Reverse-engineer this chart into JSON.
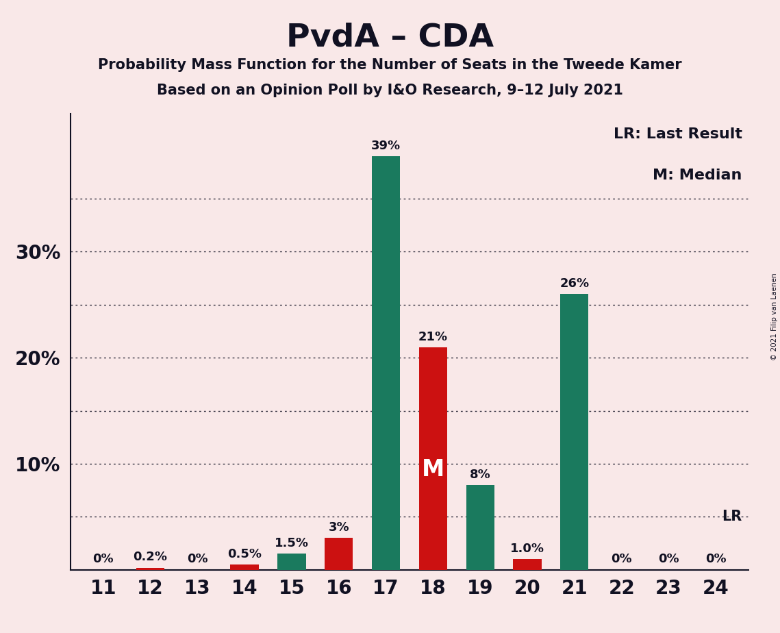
{
  "title": "PvdA – CDA",
  "subtitle1": "Probability Mass Function for the Number of Seats in the Tweede Kamer",
  "subtitle2": "Based on an Opinion Poll by I&O Research, 9–12 July 2021",
  "copyright": "© 2021 Filip van Laenen",
  "categories": [
    11,
    12,
    13,
    14,
    15,
    16,
    17,
    18,
    19,
    20,
    21,
    22,
    23,
    24
  ],
  "green_values": [
    0.0,
    0.0,
    0.0,
    0.5,
    1.5,
    0.0,
    39.0,
    0.0,
    8.0,
    0.0,
    26.0,
    0.0,
    0.0,
    0.0
  ],
  "red_values": [
    0.0,
    0.2,
    0.0,
    0.5,
    0.0,
    3.0,
    0.0,
    21.0,
    0.0,
    1.0,
    0.0,
    0.0,
    0.0,
    0.0
  ],
  "green_labels": [
    "0%",
    "",
    "0%",
    "0.5%",
    "1.5%",
    "",
    "39%",
    "",
    "8%",
    "",
    "26%",
    "0%",
    "0%",
    "0%"
  ],
  "red_labels": [
    "",
    "0.2%",
    "",
    "",
    "",
    "3%",
    "",
    "21%",
    "",
    "1.0%",
    "",
    "",
    "",
    ""
  ],
  "bar_color_green": "#1a7a5e",
  "bar_color_red": "#cc1111",
  "background_color": "#f9e8e8",
  "text_color": "#111122",
  "median_seat": 18,
  "lr_value": 5.0,
  "ytick_labeled": [
    10,
    20,
    30
  ],
  "ytick_dotted": [
    5,
    10,
    15,
    20,
    25,
    30,
    35
  ],
  "ylim": [
    0,
    43
  ],
  "legend_lr": "LR: Last Result",
  "legend_m": "M: Median"
}
